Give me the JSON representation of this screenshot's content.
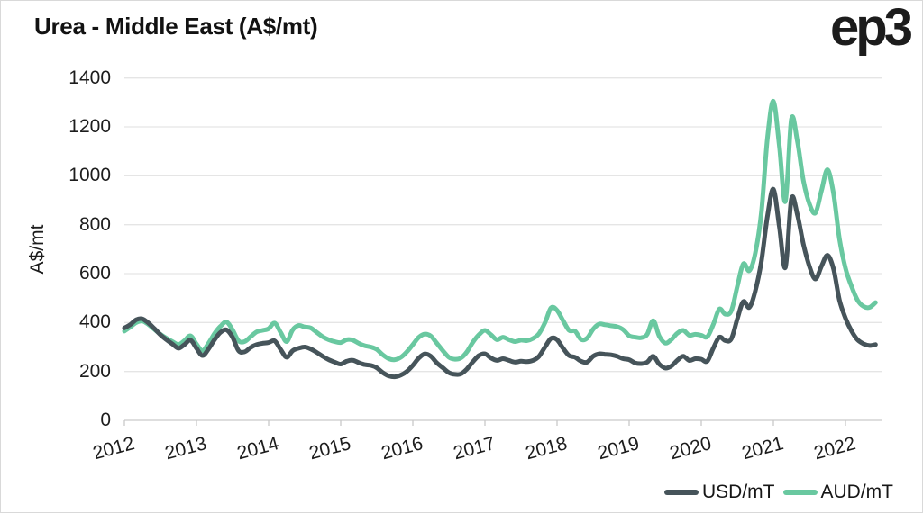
{
  "header": {
    "title": "Urea - Middle East (A$/mt)",
    "logo": "ep3"
  },
  "chart_data": {
    "type": "line",
    "title": "Urea - Middle East (A$/mt)",
    "xlabel": "",
    "ylabel": "A$/mt",
    "ylim": [
      0,
      1400
    ],
    "y_ticks": [
      0,
      200,
      400,
      600,
      800,
      1000,
      1200,
      1400
    ],
    "x_ticks": [
      "2012",
      "2013",
      "2014",
      "2015",
      "2016",
      "2017",
      "2018",
      "2019",
      "2020",
      "2021",
      "2022"
    ],
    "x_start": "2012-01",
    "x_end": "2022-06",
    "frequency": "monthly",
    "grid": "horizontal",
    "legend_position": "bottom-right",
    "series": [
      {
        "name": "USD/mT",
        "color": "#46545a",
        "values": [
          378,
          392,
          412,
          415,
          398,
          375,
          350,
          330,
          312,
          295,
          310,
          328,
          295,
          265,
          292,
          330,
          360,
          370,
          340,
          285,
          280,
          298,
          310,
          315,
          318,
          325,
          290,
          258,
          285,
          295,
          300,
          292,
          278,
          262,
          248,
          238,
          230,
          242,
          246,
          236,
          228,
          225,
          215,
          195,
          182,
          178,
          185,
          200,
          225,
          255,
          272,
          262,
          235,
          215,
          195,
          188,
          190,
          210,
          240,
          265,
          272,
          255,
          245,
          252,
          245,
          238,
          242,
          240,
          245,
          262,
          300,
          335,
          330,
          295,
          265,
          258,
          242,
          238,
          262,
          272,
          270,
          268,
          262,
          252,
          248,
          235,
          232,
          238,
          262,
          230,
          214,
          222,
          245,
          262,
          245,
          252,
          250,
          242,
          295,
          340,
          326,
          333,
          415,
          486,
          462,
          530,
          650,
          832,
          945,
          790,
          625,
          905,
          840,
          720,
          630,
          578,
          630,
          675,
          620,
          492,
          418,
          366,
          330,
          313,
          306,
          310
        ]
      },
      {
        "name": "AUD/mT",
        "color": "#69c8a0",
        "values": [
          365,
          382,
          400,
          406,
          392,
          372,
          352,
          336,
          322,
          310,
          326,
          346,
          312,
          285,
          315,
          355,
          385,
          402,
          370,
          325,
          322,
          342,
          362,
          368,
          375,
          398,
          360,
          322,
          370,
          388,
          382,
          378,
          360,
          342,
          330,
          322,
          318,
          330,
          328,
          315,
          305,
          300,
          290,
          268,
          252,
          248,
          258,
          280,
          310,
          340,
          353,
          345,
          315,
          285,
          258,
          250,
          255,
          280,
          320,
          350,
          368,
          350,
          330,
          340,
          330,
          322,
          328,
          326,
          335,
          355,
          400,
          460,
          450,
          408,
          368,
          365,
          331,
          336,
          373,
          394,
          391,
          387,
          383,
          371,
          346,
          340,
          338,
          352,
          408,
          345,
          316,
          330,
          356,
          368,
          348,
          352,
          348,
          342,
          392,
          455,
          434,
          448,
          548,
          640,
          612,
          685,
          850,
          1150,
          1305,
          1120,
          895,
          1232,
          1140,
          980,
          885,
          848,
          938,
          1025,
          928,
          742,
          622,
          548,
          492,
          466,
          462,
          482
        ]
      }
    ],
    "colors": {
      "grid": "#e5e5e5",
      "axis": "#c9c9c9",
      "text": "#1d1d1d",
      "background": "#ffffff"
    }
  }
}
